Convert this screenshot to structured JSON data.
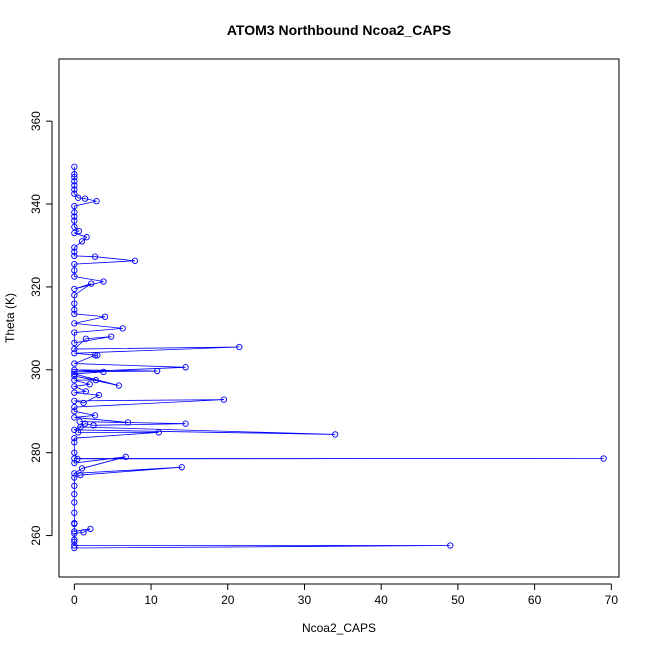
{
  "chart_data": {
    "type": "line",
    "title": "ATOM3 Northbound Ncoa2_CAPS",
    "xlabel": "Ncoa2_CAPS",
    "ylabel": "Theta (K)",
    "xlim": [
      -2,
      71
    ],
    "ylim": [
      250,
      375
    ],
    "x_ticks": [
      0,
      10,
      20,
      30,
      40,
      50,
      60,
      70
    ],
    "y_ticks": [
      260,
      280,
      300,
      320,
      340,
      360
    ],
    "grid": false,
    "legend": "none",
    "colors": {
      "series": "#0000ff",
      "axis": "#000000"
    },
    "series": [
      {
        "marker": "open-circle",
        "points": [
          [
            0,
            257
          ],
          [
            49,
            257.6
          ],
          [
            0,
            257.6
          ],
          [
            0,
            258.5
          ],
          [
            0,
            259
          ],
          [
            0,
            260.5
          ],
          [
            1.2,
            260.8
          ],
          [
            2.1,
            261.6
          ],
          [
            0,
            261
          ],
          [
            0,
            262.8
          ],
          [
            0,
            263
          ],
          [
            0,
            265.5
          ],
          [
            0,
            268
          ],
          [
            0,
            270
          ],
          [
            0,
            272
          ],
          [
            0,
            274
          ],
          [
            0.8,
            274.6
          ],
          [
            14,
            276.5
          ],
          [
            0,
            275
          ],
          [
            1,
            276.2
          ],
          [
            6.7,
            279
          ],
          [
            0,
            277.5
          ],
          [
            0,
            278.6
          ],
          [
            69,
            278.6
          ],
          [
            0.4,
            278.5
          ],
          [
            0,
            280
          ],
          [
            0,
            282.5
          ],
          [
            0,
            283.5
          ],
          [
            11,
            284.9
          ],
          [
            0.5,
            284.9
          ],
          [
            0.8,
            286.2
          ],
          [
            34,
            284.4
          ],
          [
            0,
            285.5
          ],
          [
            1.4,
            287
          ],
          [
            2.5,
            286.6
          ],
          [
            14.5,
            287
          ],
          [
            0.7,
            287.5
          ],
          [
            7,
            287.3
          ],
          [
            0,
            288.5
          ],
          [
            2.7,
            289
          ],
          [
            0,
            290
          ],
          [
            0,
            291
          ],
          [
            19.5,
            292.8
          ],
          [
            0,
            292.5
          ],
          [
            1.2,
            292
          ],
          [
            3.2,
            293.9
          ],
          [
            0,
            294.5
          ],
          [
            1.5,
            294.8
          ],
          [
            0,
            296
          ],
          [
            2,
            296.5
          ],
          [
            0,
            297.5
          ],
          [
            2.8,
            297.5
          ],
          [
            0,
            298.5
          ],
          [
            5.8,
            296.2
          ],
          [
            0,
            299
          ],
          [
            3.8,
            299.5
          ],
          [
            0,
            300
          ],
          [
            10.8,
            299.7
          ],
          [
            0,
            299.5
          ],
          [
            14.5,
            300.6
          ],
          [
            0,
            301.5
          ],
          [
            2.7,
            303.5
          ],
          [
            3,
            303.5
          ],
          [
            0,
            304
          ],
          [
            21.5,
            305.5
          ],
          [
            0,
            305
          ],
          [
            1.5,
            307.5
          ],
          [
            4.8,
            308
          ],
          [
            0,
            306.5
          ],
          [
            0,
            309
          ],
          [
            6.3,
            310
          ],
          [
            0,
            311.2
          ],
          [
            4,
            312.8
          ],
          [
            0,
            313.5
          ],
          [
            0,
            314.5
          ],
          [
            0,
            316
          ],
          [
            0,
            318
          ],
          [
            2.2,
            320.8
          ],
          [
            0,
            319.5
          ],
          [
            3.8,
            321.3
          ],
          [
            0,
            322.5
          ],
          [
            0,
            324
          ],
          [
            0,
            325.5
          ],
          [
            7.9,
            326.3
          ],
          [
            2.7,
            327.3
          ],
          [
            0,
            327.5
          ],
          [
            0,
            328.5
          ],
          [
            0,
            329.5
          ],
          [
            1,
            331
          ],
          [
            1.6,
            332
          ],
          [
            0,
            333
          ],
          [
            0.6,
            333.5
          ],
          [
            0,
            334.5
          ],
          [
            0,
            336
          ],
          [
            0,
            337
          ],
          [
            0,
            338
          ],
          [
            0,
            339.5
          ],
          [
            2.9,
            340.7
          ],
          [
            1.4,
            341.3
          ],
          [
            0.5,
            341.5
          ],
          [
            0,
            342.5
          ],
          [
            0,
            343.5
          ],
          [
            0,
            344.5
          ],
          [
            0,
            345.5
          ],
          [
            0,
            346.5
          ],
          [
            0,
            347.2
          ],
          [
            0,
            349
          ]
        ]
      }
    ]
  }
}
